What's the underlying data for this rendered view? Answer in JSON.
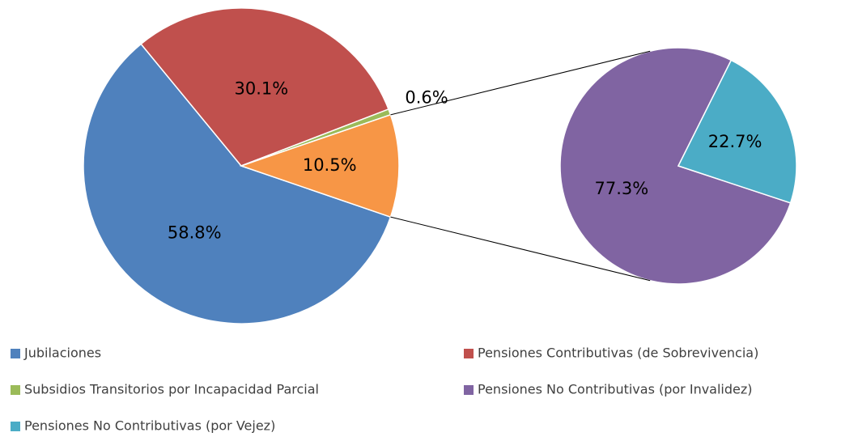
{
  "chart_data": [
    {
      "type": "pie",
      "categories": [
        "Jubilaciones",
        "Pensiones Contributivas (de Sobrevivencia)",
        "Subsidios Transitorios por Incapacidad Parcial",
        null
      ],
      "values": [
        58.8,
        30.1,
        0.6,
        10.5
      ],
      "value_labels": [
        "58.8%",
        "30.1%",
        "0.6%",
        "10.5%"
      ],
      "colors": [
        "#4f81bd",
        "#c0504d",
        "#9bbb59",
        "#f79646"
      ]
    },
    {
      "type": "pie",
      "categories": [
        "Pensiones No Contributivas (por Invalidez)",
        "Pensiones No Contributivas (por Vejez)"
      ],
      "values": [
        77.3,
        22.7
      ],
      "value_labels": [
        "77.3%",
        "22.7%"
      ],
      "colors": [
        "#8064a2",
        "#4bacc6"
      ]
    }
  ]
}
